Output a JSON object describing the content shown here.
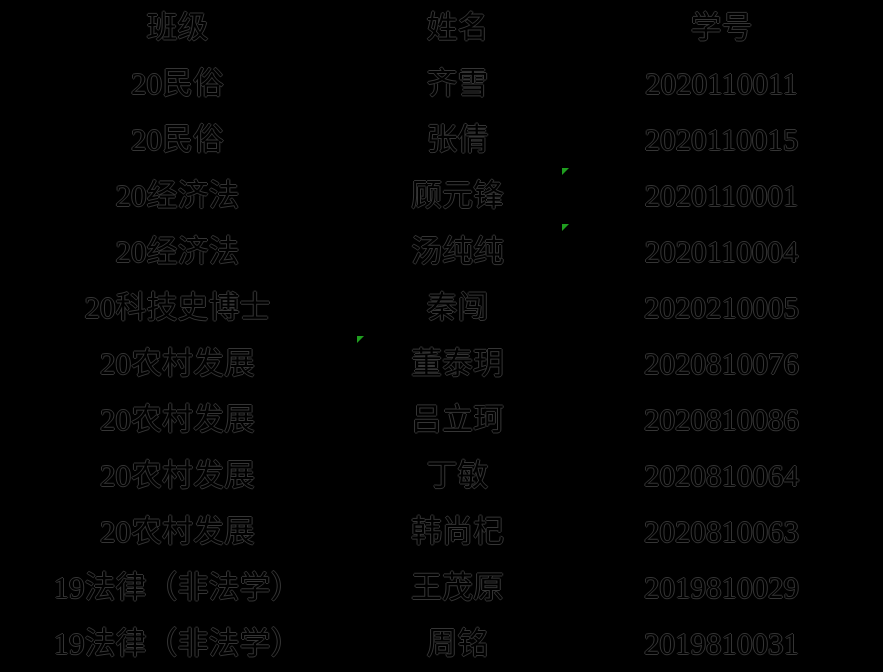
{
  "colors": {
    "background": "#000000",
    "text_outline": "#353535",
    "indicator_green": "#1f9e1f"
  },
  "table": {
    "columns": [
      {
        "key": "class",
        "label": "班级"
      },
      {
        "key": "name",
        "label": "姓名"
      },
      {
        "key": "student_id",
        "label": "学号"
      }
    ],
    "rows": [
      {
        "class": "20民俗",
        "name": "齐雪",
        "student_id": "2020110011"
      },
      {
        "class": "20民俗",
        "name": "张倩",
        "student_id": "2020110015"
      },
      {
        "class": "20经济法",
        "name": "顾元锋",
        "student_id": "2020110001"
      },
      {
        "class": "20经济法",
        "name": "汤纯纯",
        "student_id": "2020110004"
      },
      {
        "class": "20科技史博士",
        "name": "秦闯",
        "student_id": "2020210005"
      },
      {
        "class": "20农村发展",
        "name": "董泰玥",
        "student_id": "2020810076"
      },
      {
        "class": "20农村发展",
        "name": "吕立珂",
        "student_id": "2020810086"
      },
      {
        "class": "20农村发展",
        "name": "丁敏",
        "student_id": "2020810064"
      },
      {
        "class": "20农村发展",
        "name": "韩尚杞",
        "student_id": "2020810063"
      },
      {
        "class": "19法律（非法学）",
        "name": "王茂原",
        "student_id": "2019810029"
      },
      {
        "class": "19法律（非法学）",
        "name": "周铭",
        "student_id": "2019810031"
      }
    ]
  },
  "cell_indicators": [
    {
      "grid_row": 3,
      "col": 2
    },
    {
      "grid_row": 4,
      "col": 2
    },
    {
      "grid_row": 6,
      "col": 1
    }
  ]
}
